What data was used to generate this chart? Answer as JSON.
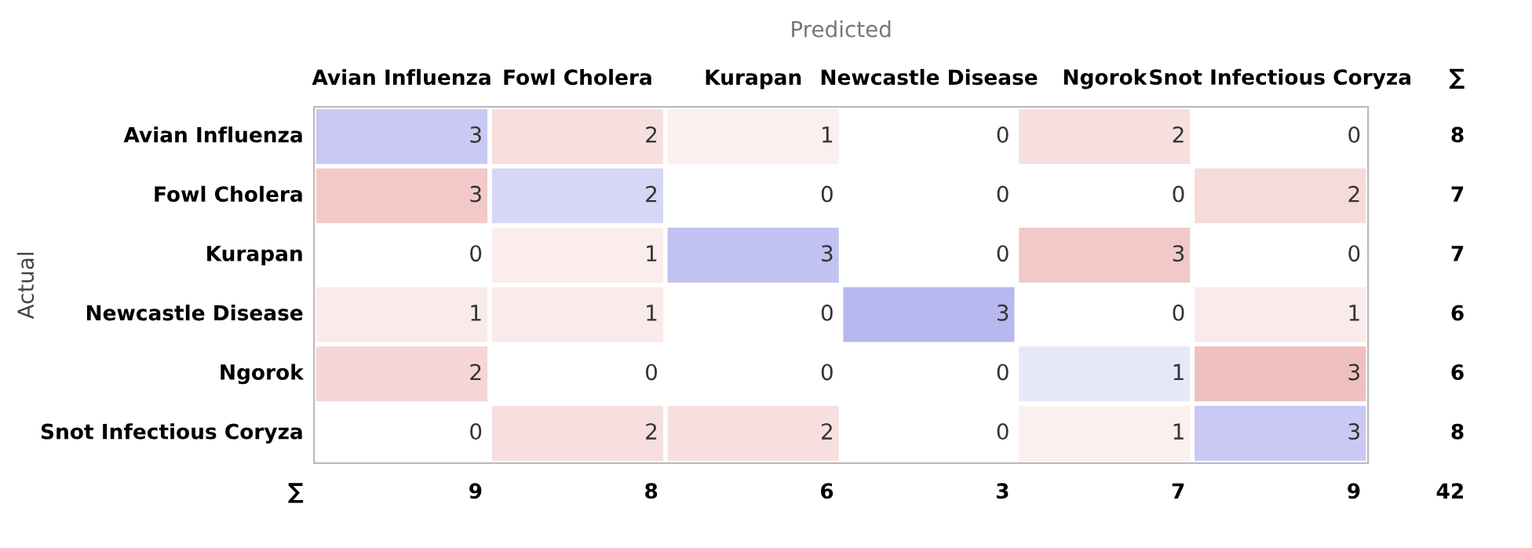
{
  "chart_data": {
    "type": "heatmap",
    "xlabel": "Predicted",
    "ylabel": "Actual",
    "categories": [
      "Avian Influenza",
      "Fowl Cholera",
      "Kurapan",
      "Newcastle Disease",
      "Ngorok",
      "Snot Infectious Coryza"
    ],
    "y_categories": [
      "Avian Influenza",
      "Fowl Cholera",
      "Kurapan",
      "Newcastle Disease",
      "Ngorok",
      "Snot Infectious Coryza"
    ],
    "y2_categories": [
      "8",
      "7",
      "7",
      "6",
      "6",
      "8"
    ],
    "cells": [
      [
        3,
        2,
        1,
        0,
        2,
        0
      ],
      [
        3,
        2,
        0,
        0,
        0,
        2
      ],
      [
        0,
        1,
        3,
        0,
        3,
        0
      ],
      [
        1,
        1,
        0,
        3,
        0,
        1
      ],
      [
        2,
        0,
        0,
        0,
        1,
        3
      ],
      [
        0,
        2,
        2,
        0,
        1,
        3
      ]
    ],
    "data_labels": true,
    "annotations": [
      "∑",
      "∑",
      "9",
      "8",
      "6",
      "3",
      "7",
      "9",
      "42"
    ]
  }
}
